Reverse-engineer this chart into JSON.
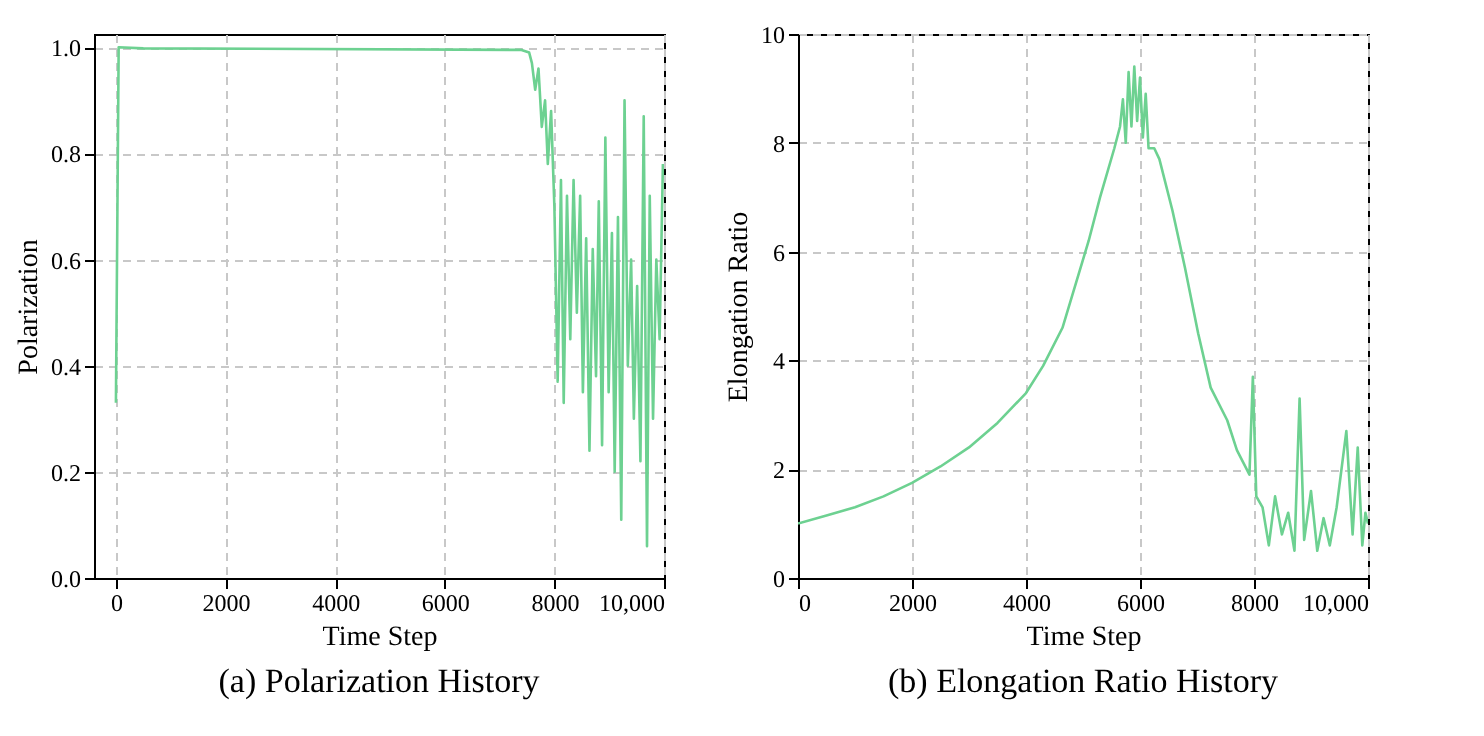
{
  "chart_data": [
    {
      "type": "line",
      "title": "(a) Polarization History",
      "xlabel": "Time Step",
      "ylabel": "Polarization",
      "xlim": [
        -400,
        10000
      ],
      "ylim": [
        0,
        1.025
      ],
      "xticks": [
        0,
        2000,
        4000,
        6000,
        8000,
        {
          "value": 10000,
          "label": "10,000"
        }
      ],
      "yticks": [
        {
          "value": 0,
          "label": "0.0"
        },
        0.2,
        0.4,
        0.6,
        0.8,
        {
          "value": 1,
          "label": "1.0"
        }
      ],
      "grid": true,
      "series": [
        {
          "color": "#6dd191",
          "x": [
            0,
            50,
            500,
            7400,
            7540,
            7590,
            7650,
            7710,
            7770,
            7830,
            7880,
            7940,
            8000,
            8060,
            8120,
            8170,
            8230,
            8290,
            8350,
            8410,
            8470,
            8520,
            8580,
            8640,
            8700,
            8760,
            8810,
            8870,
            8930,
            8990,
            9050,
            9100,
            9160,
            9220,
            9280,
            9340,
            9400,
            9450,
            9510,
            9570,
            9630,
            9690,
            9740,
            9800,
            9860,
            9920,
            9980
          ],
          "values": [
            0.33,
            1.0,
            0.998,
            0.995,
            0.99,
            0.97,
            0.92,
            0.96,
            0.85,
            0.9,
            0.78,
            0.88,
            0.7,
            0.37,
            0.75,
            0.33,
            0.72,
            0.45,
            0.75,
            0.5,
            0.72,
            0.35,
            0.64,
            0.24,
            0.62,
            0.38,
            0.71,
            0.25,
            0.83,
            0.35,
            0.65,
            0.2,
            0.68,
            0.11,
            0.9,
            0.4,
            0.6,
            0.3,
            0.55,
            0.22,
            0.87,
            0.06,
            0.72,
            0.3,
            0.6,
            0.45,
            0.78
          ]
        }
      ]
    },
    {
      "type": "line",
      "title": "(b) Elongation Ratio History",
      "xlabel": "Time Step",
      "ylabel": "Elongation Ratio",
      "xlim": [
        0,
        10000
      ],
      "ylim": [
        0,
        10
      ],
      "xticks": [
        0,
        2000,
        4000,
        6000,
        8000,
        {
          "value": 10000,
          "label": "10,000"
        }
      ],
      "yticks": [
        0,
        2,
        4,
        6,
        8,
        10
      ],
      "grid": true,
      "series": [
        {
          "color": "#6dd191",
          "x": [
            0,
            500,
            1000,
            1500,
            2000,
            2500,
            3000,
            3500,
            4000,
            4300,
            4640,
            5100,
            5300,
            5550,
            5650,
            5700,
            5750,
            5800,
            5850,
            5900,
            5950,
            6000,
            6050,
            6100,
            6150,
            6250,
            6340,
            6570,
            6790,
            7020,
            7240,
            7530,
            7700,
            7920,
            7980,
            8040,
            8150,
            8260,
            8370,
            8490,
            8600,
            8710,
            8800,
            8880,
            9000,
            9110,
            9220,
            9330,
            9450,
            9620,
            9730,
            9820,
            9900,
            9955,
            10000
          ],
          "values": [
            1.0,
            1.15,
            1.3,
            1.5,
            1.75,
            2.05,
            2.4,
            2.85,
            3.4,
            3.9,
            4.6,
            6.2,
            7.0,
            7.9,
            8.3,
            8.8,
            8.0,
            9.3,
            8.3,
            9.4,
            8.4,
            9.2,
            8.1,
            8.9,
            7.9,
            7.9,
            7.7,
            6.75,
            5.7,
            4.5,
            3.5,
            2.9,
            2.35,
            1.9,
            3.7,
            1.5,
            1.3,
            0.6,
            1.5,
            0.8,
            1.2,
            0.5,
            3.3,
            0.7,
            1.6,
            0.5,
            1.1,
            0.6,
            1.3,
            2.7,
            0.8,
            2.4,
            0.6,
            1.2,
            1.0
          ]
        }
      ]
    }
  ]
}
